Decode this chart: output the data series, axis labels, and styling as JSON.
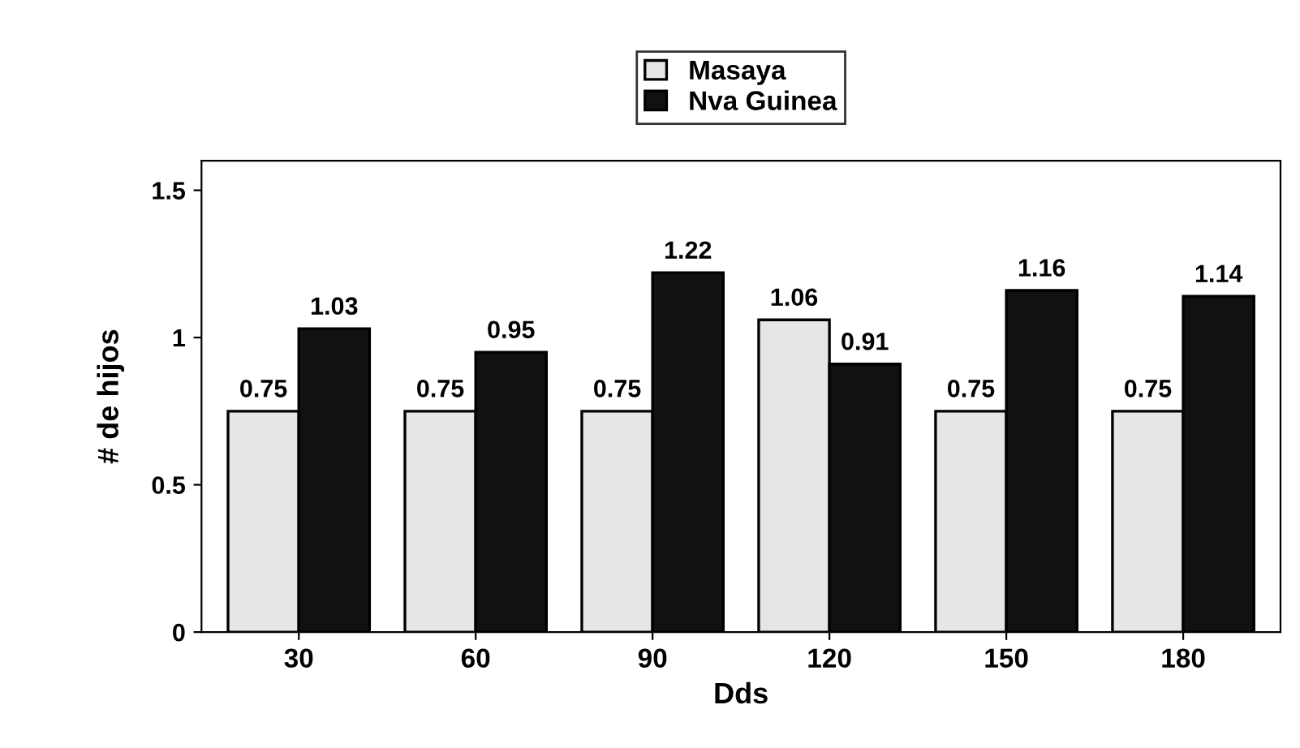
{
  "chart_data": {
    "type": "bar",
    "xlabel": "Dds",
    "ylabel": "# de hijos",
    "categories": [
      "30",
      "60",
      "90",
      "120",
      "150",
      "180"
    ],
    "series": [
      {
        "name": "Masaya",
        "color": "#e6e6e6",
        "values": [
          0.75,
          0.75,
          0.75,
          1.06,
          0.75,
          0.75
        ]
      },
      {
        "name": "Nva Guinea",
        "color": "#111111",
        "values": [
          1.03,
          0.95,
          1.22,
          0.91,
          1.16,
          1.14
        ]
      }
    ],
    "ylim": [
      0,
      1.6
    ],
    "yticks": [
      0,
      0.5,
      1,
      1.5
    ],
    "data_labels": true,
    "legend": "top",
    "grid": false
  }
}
